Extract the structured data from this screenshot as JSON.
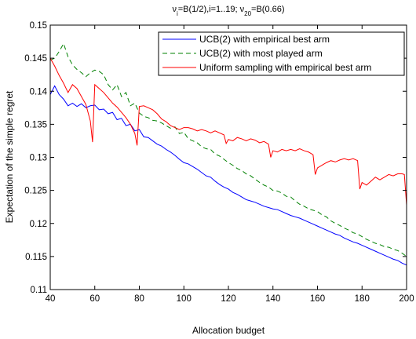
{
  "chart_data": {
    "type": "line",
    "title": "ν_i=B(1/2),i=1..19; ν_20=B(0.66)",
    "title_parts": {
      "nu": "ν",
      "sub_i": "i",
      "mid": "=B(1/2),i=1..19; ν",
      "sub_20": "20",
      "end": "=B(0.66)"
    },
    "xlabel": "Allocation budget",
    "ylabel": "Expectation of the simple regret",
    "xlim": [
      40,
      200
    ],
    "ylim": [
      0.11,
      0.15
    ],
    "x_ticks": [
      40,
      60,
      80,
      100,
      120,
      140,
      160,
      180,
      200
    ],
    "y_ticks": [
      0.11,
      0.115,
      0.12,
      0.125,
      0.13,
      0.135,
      0.14,
      0.145,
      0.15
    ],
    "grid": false,
    "legend_position": "top-right",
    "series": [
      {
        "name": "UCB(2) with empirical best arm",
        "color": "#0000ff",
        "style": "solid",
        "points": [
          [
            40,
            0.1395
          ],
          [
            42,
            0.1408
          ],
          [
            44,
            0.1395
          ],
          [
            46,
            0.1388
          ],
          [
            48,
            0.1378
          ],
          [
            50,
            0.1382
          ],
          [
            52,
            0.1377
          ],
          [
            54,
            0.1381
          ],
          [
            56,
            0.1375
          ],
          [
            58,
            0.1378
          ],
          [
            60,
            0.1379
          ],
          [
            62,
            0.1372
          ],
          [
            64,
            0.1373
          ],
          [
            66,
            0.1366
          ],
          [
            68,
            0.1368
          ],
          [
            70,
            0.1357
          ],
          [
            72,
            0.1359
          ],
          [
            74,
            0.1348
          ],
          [
            76,
            0.135
          ],
          [
            78,
            0.134
          ],
          [
            80,
            0.1342
          ],
          [
            82,
            0.1331
          ],
          [
            84,
            0.133
          ],
          [
            86,
            0.1325
          ],
          [
            88,
            0.132
          ],
          [
            90,
            0.1317
          ],
          [
            92,
            0.1312
          ],
          [
            94,
            0.1308
          ],
          [
            96,
            0.1303
          ],
          [
            98,
            0.1297
          ],
          [
            100,
            0.1292
          ],
          [
            102,
            0.129
          ],
          [
            104,
            0.1286
          ],
          [
            106,
            0.1282
          ],
          [
            108,
            0.1277
          ],
          [
            110,
            0.1272
          ],
          [
            112,
            0.127
          ],
          [
            114,
            0.1264
          ],
          [
            116,
            0.1259
          ],
          [
            118,
            0.1255
          ],
          [
            120,
            0.1252
          ],
          [
            122,
            0.1247
          ],
          [
            124,
            0.1244
          ],
          [
            126,
            0.124
          ],
          [
            128,
            0.1236
          ],
          [
            130,
            0.1234
          ],
          [
            132,
            0.1232
          ],
          [
            134,
            0.1229
          ],
          [
            136,
            0.1226
          ],
          [
            138,
            0.1224
          ],
          [
            140,
            0.1222
          ],
          [
            142,
            0.1221
          ],
          [
            144,
            0.1218
          ],
          [
            146,
            0.1215
          ],
          [
            148,
            0.1212
          ],
          [
            150,
            0.121
          ],
          [
            152,
            0.1208
          ],
          [
            154,
            0.1205
          ],
          [
            156,
            0.1202
          ],
          [
            158,
            0.1199
          ],
          [
            160,
            0.1196
          ],
          [
            162,
            0.1193
          ],
          [
            164,
            0.119
          ],
          [
            166,
            0.1187
          ],
          [
            168,
            0.1184
          ],
          [
            170,
            0.1182
          ],
          [
            172,
            0.1178
          ],
          [
            174,
            0.1175
          ],
          [
            176,
            0.1172
          ],
          [
            178,
            0.117
          ],
          [
            180,
            0.1167
          ],
          [
            182,
            0.1164
          ],
          [
            184,
            0.1161
          ],
          [
            186,
            0.1158
          ],
          [
            188,
            0.1155
          ],
          [
            190,
            0.1152
          ],
          [
            192,
            0.1149
          ],
          [
            194,
            0.1146
          ],
          [
            196,
            0.1144
          ],
          [
            198,
            0.114
          ],
          [
            200,
            0.1137
          ]
        ]
      },
      {
        "name": "UCB(2) with most played arm",
        "color": "#008000",
        "style": "dashed",
        "points": [
          [
            40,
            0.1447
          ],
          [
            42,
            0.145
          ],
          [
            44,
            0.146
          ],
          [
            46,
            0.1472
          ],
          [
            48,
            0.1452
          ],
          [
            50,
            0.144
          ],
          [
            52,
            0.1433
          ],
          [
            54,
            0.1428
          ],
          [
            56,
            0.1422
          ],
          [
            58,
            0.1428
          ],
          [
            60,
            0.1432
          ],
          [
            62,
            0.143
          ],
          [
            64,
            0.1425
          ],
          [
            66,
            0.141
          ],
          [
            68,
            0.1402
          ],
          [
            70,
            0.141
          ],
          [
            72,
            0.1392
          ],
          [
            74,
            0.1398
          ],
          [
            76,
            0.1378
          ],
          [
            78,
            0.1382
          ],
          [
            80,
            0.1367
          ],
          [
            82,
            0.1362
          ],
          [
            84,
            0.136
          ],
          [
            86,
            0.1356
          ],
          [
            88,
            0.1355
          ],
          [
            90,
            0.1352
          ],
          [
            92,
            0.1348
          ],
          [
            94,
            0.1344
          ],
          [
            96,
            0.1346
          ],
          [
            98,
            0.1336
          ],
          [
            100,
            0.1338
          ],
          [
            102,
            0.1328
          ],
          [
            104,
            0.1325
          ],
          [
            106,
            0.1322
          ],
          [
            108,
            0.1316
          ],
          [
            110,
            0.1313
          ],
          [
            112,
            0.1312
          ],
          [
            114,
            0.1305
          ],
          [
            116,
            0.1302
          ],
          [
            118,
            0.1297
          ],
          [
            120,
            0.1292
          ],
          [
            122,
            0.1288
          ],
          [
            124,
            0.1283
          ],
          [
            126,
            0.128
          ],
          [
            128,
            0.1275
          ],
          [
            130,
            0.1272
          ],
          [
            132,
            0.1267
          ],
          [
            134,
            0.1262
          ],
          [
            136,
            0.1258
          ],
          [
            138,
            0.1255
          ],
          [
            140,
            0.125
          ],
          [
            142,
            0.1249
          ],
          [
            144,
            0.1246
          ],
          [
            146,
            0.1241
          ],
          [
            148,
            0.124
          ],
          [
            150,
            0.1234
          ],
          [
            152,
            0.1229
          ],
          [
            154,
            0.1226
          ],
          [
            156,
            0.1222
          ],
          [
            158,
            0.122
          ],
          [
            160,
            0.1218
          ],
          [
            162,
            0.1213
          ],
          [
            164,
            0.121
          ],
          [
            166,
            0.1204
          ],
          [
            168,
            0.12
          ],
          [
            170,
            0.1197
          ],
          [
            172,
            0.1193
          ],
          [
            174,
            0.119
          ],
          [
            176,
            0.1186
          ],
          [
            178,
            0.1184
          ],
          [
            180,
            0.118
          ],
          [
            182,
            0.1176
          ],
          [
            184,
            0.1173
          ],
          [
            186,
            0.117
          ],
          [
            188,
            0.1168
          ],
          [
            190,
            0.1165
          ],
          [
            192,
            0.1164
          ],
          [
            194,
            0.1161
          ],
          [
            196,
            0.1159
          ],
          [
            198,
            0.1155
          ],
          [
            200,
            0.115
          ]
        ]
      },
      {
        "name": "Uniform sampling with empirical best arm",
        "color": "#ff0000",
        "style": "solid",
        "points": [
          [
            40,
            0.145
          ],
          [
            42,
            0.1438
          ],
          [
            44,
            0.1424
          ],
          [
            46,
            0.1412
          ],
          [
            48,
            0.1398
          ],
          [
            50,
            0.141
          ],
          [
            52,
            0.1404
          ],
          [
            54,
            0.1392
          ],
          [
            56,
            0.138
          ],
          [
            58,
            0.1355
          ],
          [
            59,
            0.1323
          ],
          [
            60,
            0.141
          ],
          [
            62,
            0.1404
          ],
          [
            64,
            0.1398
          ],
          [
            66,
            0.139
          ],
          [
            68,
            0.1382
          ],
          [
            70,
            0.1376
          ],
          [
            72,
            0.1368
          ],
          [
            74,
            0.136
          ],
          [
            76,
            0.135
          ],
          [
            78,
            0.1336
          ],
          [
            79,
            0.1318
          ],
          [
            80,
            0.1377
          ],
          [
            82,
            0.1378
          ],
          [
            84,
            0.1375
          ],
          [
            86,
            0.1372
          ],
          [
            88,
            0.1366
          ],
          [
            90,
            0.1358
          ],
          [
            92,
            0.1354
          ],
          [
            94,
            0.1348
          ],
          [
            96,
            0.1345
          ],
          [
            98,
            0.1342
          ],
          [
            100,
            0.1345
          ],
          [
            102,
            0.1345
          ],
          [
            104,
            0.1343
          ],
          [
            106,
            0.134
          ],
          [
            108,
            0.1342
          ],
          [
            110,
            0.134
          ],
          [
            112,
            0.1337
          ],
          [
            114,
            0.134
          ],
          [
            116,
            0.1337
          ],
          [
            118,
            0.1334
          ],
          [
            119,
            0.1321
          ],
          [
            120,
            0.1327
          ],
          [
            122,
            0.1325
          ],
          [
            124,
            0.133
          ],
          [
            126,
            0.1328
          ],
          [
            128,
            0.1325
          ],
          [
            130,
            0.1328
          ],
          [
            132,
            0.1326
          ],
          [
            134,
            0.1322
          ],
          [
            136,
            0.1324
          ],
          [
            138,
            0.132
          ],
          [
            139,
            0.13
          ],
          [
            140,
            0.131
          ],
          [
            142,
            0.1308
          ],
          [
            144,
            0.1312
          ],
          [
            146,
            0.131
          ],
          [
            148,
            0.1312
          ],
          [
            150,
            0.131
          ],
          [
            152,
            0.1313
          ],
          [
            154,
            0.131
          ],
          [
            156,
            0.1308
          ],
          [
            158,
            0.1304
          ],
          [
            159,
            0.1274
          ],
          [
            160,
            0.1284
          ],
          [
            162,
            0.1288
          ],
          [
            164,
            0.1292
          ],
          [
            166,
            0.1295
          ],
          [
            168,
            0.1293
          ],
          [
            170,
            0.1296
          ],
          [
            172,
            0.1298
          ],
          [
            174,
            0.1296
          ],
          [
            176,
            0.1298
          ],
          [
            178,
            0.1295
          ],
          [
            179,
            0.1252
          ],
          [
            180,
            0.1262
          ],
          [
            182,
            0.1258
          ],
          [
            184,
            0.1264
          ],
          [
            186,
            0.127
          ],
          [
            188,
            0.1266
          ],
          [
            190,
            0.127
          ],
          [
            192,
            0.1274
          ],
          [
            194,
            0.1272
          ],
          [
            196,
            0.1275
          ],
          [
            198,
            0.1275
          ],
          [
            199,
            0.1274
          ],
          [
            200,
            0.1228
          ]
        ]
      }
    ]
  }
}
